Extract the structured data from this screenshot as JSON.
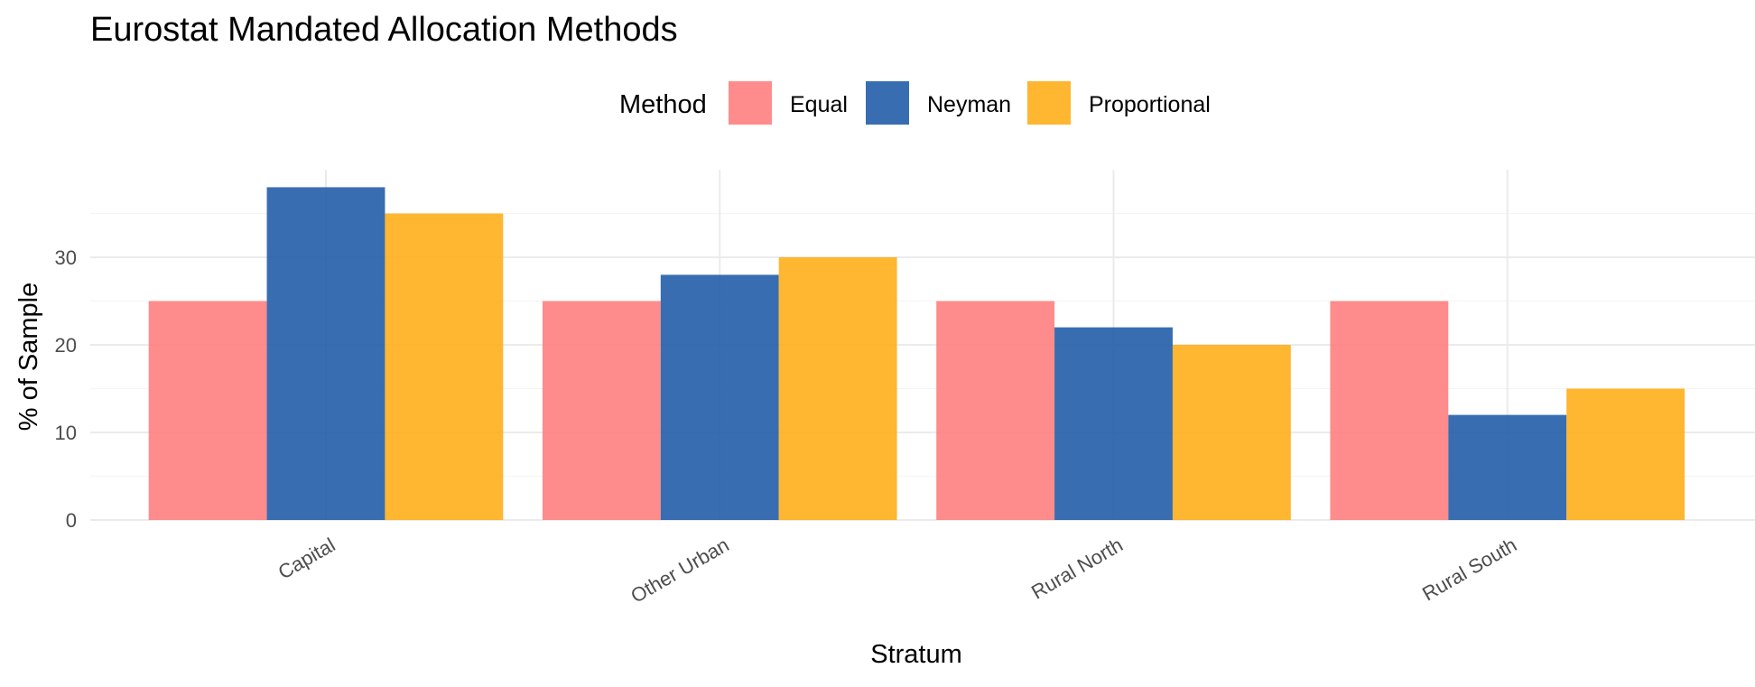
{
  "chart_data": {
    "type": "bar",
    "title": "Eurostat Mandated Allocation Methods",
    "xlabel": "Stratum",
    "ylabel": "% of Sample",
    "categories": [
      "Capital",
      "Other Urban",
      "Rural North",
      "Rural South"
    ],
    "series": [
      {
        "name": "Equal",
        "values": [
          25,
          25,
          25,
          25
        ],
        "color": "#ff7f7f"
      },
      {
        "name": "Neyman",
        "values": [
          38,
          28,
          22,
          12
        ],
        "color": "#225ea8"
      },
      {
        "name": "Proportional",
        "values": [
          35,
          30,
          20,
          15
        ],
        "color": "#ffae1a"
      }
    ],
    "ylim": [
      0,
      40
    ],
    "yticks": [
      0,
      10,
      20,
      30
    ],
    "legend": {
      "title": "Method",
      "position": "top"
    },
    "grid": true,
    "bar_opacity": 0.9
  }
}
